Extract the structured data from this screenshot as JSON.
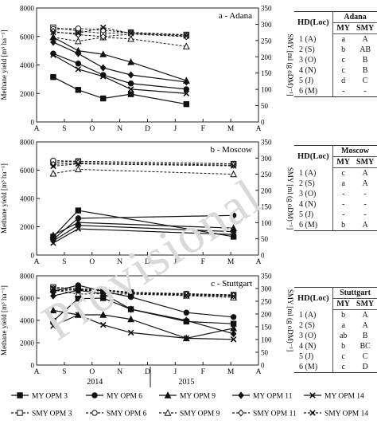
{
  "watermark": "Provisional",
  "axes": {
    "ylabel_left": "Methane yield [m³ ha⁻¹]",
    "ylabel_right": "SMY [ml (g oDM)⁻¹]",
    "left_ticks": [
      0,
      2000,
      4000,
      6000,
      8000
    ],
    "right_ticks": [
      0,
      50,
      100,
      150,
      200,
      250,
      300,
      350
    ],
    "month_ticks": [
      "A",
      "S",
      "O",
      "N",
      "D",
      "J",
      "F",
      "M",
      "A"
    ],
    "year_labels": [
      "2014",
      "2015"
    ]
  },
  "legend": [
    {
      "label": "MY OPM 3",
      "marker": "square",
      "filled": true,
      "dashed": false
    },
    {
      "label": "MY OPM 6",
      "marker": "circle",
      "filled": true,
      "dashed": false
    },
    {
      "label": "MY OPM 9",
      "marker": "triangle",
      "filled": true,
      "dashed": false
    },
    {
      "label": "MY OPM 11",
      "marker": "diamond",
      "filled": true,
      "dashed": false
    },
    {
      "label": "MY OPM 14",
      "marker": "cross",
      "filled": true,
      "dashed": false
    },
    {
      "label": "SMY OPM 3",
      "marker": "square",
      "filled": false,
      "dashed": true
    },
    {
      "label": "SMY OPM 6",
      "marker": "circle",
      "filled": false,
      "dashed": true
    },
    {
      "label": "SMY OPM 9",
      "marker": "triangle",
      "filled": false,
      "dashed": true
    },
    {
      "label": "SMY OPM 11",
      "marker": "diamond",
      "filled": false,
      "dashed": true
    },
    {
      "label": "SMY OPM 14",
      "marker": "cross",
      "filled": false,
      "dashed": true
    }
  ],
  "chart_data": [
    {
      "type": "line",
      "title": "a - Adana",
      "x_unit": "month index (0 = A Aug 2014 … 8 = A Apr 2015)",
      "ylim_left": [
        0,
        8000
      ],
      "ylim_right": [
        0,
        350
      ],
      "my_series": [
        {
          "name": "MY OPM 3",
          "x": [
            0.6,
            1.5,
            2.4,
            3.4,
            5.4
          ],
          "y": [
            3150,
            2250,
            1650,
            1950,
            1250
          ]
        },
        {
          "name": "MY OPM 6",
          "x": [
            0.6,
            1.5,
            2.4,
            3.4,
            5.4
          ],
          "y": [
            4800,
            4100,
            3300,
            2700,
            2300
          ]
        },
        {
          "name": "MY OPM 9",
          "x": [
            0.6,
            1.5,
            2.4,
            3.4,
            5.4
          ],
          "y": [
            5950,
            5000,
            4750,
            4200,
            2900
          ]
        },
        {
          "name": "MY OPM 11",
          "x": [
            0.6,
            1.5,
            2.4,
            3.4,
            5.4
          ],
          "y": [
            5600,
            4800,
            3800,
            3300,
            2800
          ]
        },
        {
          "name": "MY OPM 14",
          "x": [
            0.6,
            1.5,
            2.4,
            3.4,
            5.4
          ],
          "y": [
            4700,
            3700,
            3200,
            2300,
            2000
          ]
        }
      ],
      "smy_series": [
        {
          "name": "SMY OPM 3",
          "x": [
            0.6,
            1.5,
            2.4,
            3.4,
            5.4
          ],
          "y": [
            290,
            280,
            272,
            275,
            268
          ]
        },
        {
          "name": "SMY OPM 6",
          "x": [
            0.6,
            1.5,
            2.4,
            3.4,
            5.4
          ],
          "y": [
            285,
            287,
            282,
            274,
            266
          ]
        },
        {
          "name": "SMY OPM 9",
          "x": [
            0.6,
            1.5,
            2.4,
            3.4,
            5.4
          ],
          "y": [
            260,
            248,
            260,
            255,
            232
          ]
        },
        {
          "name": "SMY OPM 11",
          "x": [
            0.6,
            1.5,
            2.4,
            3.4,
            5.4
          ],
          "y": [
            278,
            268,
            262,
            270,
            262
          ]
        },
        {
          "name": "SMY OPM 14",
          "x": [
            0.6,
            1.5,
            2.4,
            3.4,
            5.4
          ],
          "y": [
            275,
            272,
            290,
            272,
            264
          ]
        }
      ],
      "table": {
        "loc": "Adana",
        "rows": [
          {
            "hd": "1 (A)",
            "my": "a",
            "smy": "A"
          },
          {
            "hd": "2 (S)",
            "my": "b",
            "smy": "AB"
          },
          {
            "hd": "3 (O)",
            "my": "c",
            "smy": "B"
          },
          {
            "hd": "4 (N)",
            "my": "c",
            "smy": "B"
          },
          {
            "hd": "5 (J)",
            "my": "d",
            "smy": "C"
          },
          {
            "hd": "6 (M)",
            "my": "-",
            "smy": "-"
          }
        ]
      }
    },
    {
      "type": "line",
      "title": "b - Moscow",
      "x_unit": "month index (0 = A Aug 2014 … 8 = A Apr 2015)",
      "ylim_left": [
        0,
        8000
      ],
      "ylim_right": [
        0,
        350
      ],
      "my_series": [
        {
          "name": "MY OPM 3",
          "x": [
            0.6,
            1.5,
            7.1
          ],
          "y": [
            1300,
            3150,
            1300
          ]
        },
        {
          "name": "MY OPM 6",
          "x": [
            0.6,
            1.5,
            7.1
          ],
          "y": [
            1100,
            2600,
            2800
          ]
        },
        {
          "name": "MY OPM 9",
          "x": [
            0.6,
            1.5,
            7.1
          ],
          "y": [
            1400,
            2300,
            1900
          ]
        },
        {
          "name": "MY OPM 11",
          "x": [
            0.6,
            1.5,
            7.1
          ],
          "y": [
            1000,
            2100,
            1650
          ]
        },
        {
          "name": "MY OPM 14",
          "x": [
            0.6,
            1.5,
            7.1
          ],
          "y": [
            850,
            1850,
            1450
          ]
        }
      ],
      "smy_series": [
        {
          "name": "SMY OPM 3",
          "x": [
            0.6,
            1.5,
            7.1
          ],
          "y": [
            287,
            290,
            282
          ]
        },
        {
          "name": "SMY OPM 6",
          "x": [
            0.6,
            1.5,
            7.1
          ],
          "y": [
            292,
            290,
            282
          ]
        },
        {
          "name": "SMY OPM 9",
          "x": [
            0.6,
            1.5,
            7.1
          ],
          "y": [
            252,
            265,
            250
          ]
        },
        {
          "name": "SMY OPM 11",
          "x": [
            0.6,
            1.5,
            7.1
          ],
          "y": [
            280,
            285,
            278
          ]
        },
        {
          "name": "SMY OPM 14",
          "x": [
            0.6,
            1.5,
            7.1
          ],
          "y": [
            275,
            282,
            276
          ]
        }
      ],
      "table": {
        "loc": "Moscow",
        "rows": [
          {
            "hd": "1 (A)",
            "my": "c",
            "smy": "A"
          },
          {
            "hd": "2 (S)",
            "my": "a",
            "smy": "A"
          },
          {
            "hd": "3 (O)",
            "my": "-",
            "smy": "-"
          },
          {
            "hd": "4 (N)",
            "my": "-",
            "smy": "-"
          },
          {
            "hd": "5 (J)",
            "my": "-",
            "smy": "-"
          },
          {
            "hd": "6 (M)",
            "my": "b",
            "smy": "A"
          }
        ]
      }
    },
    {
      "type": "line",
      "title": "c - Stuttgart",
      "x_unit": "month index (0 = A Aug 2014 … 8 = A Apr 2015)",
      "ylim_left": [
        0,
        8000
      ],
      "ylim_right": [
        0,
        350
      ],
      "my_series": [
        {
          "name": "MY OPM 3",
          "x": [
            0.6,
            1.5,
            2.4,
            3.4,
            5.4,
            7.1
          ],
          "y": [
            3950,
            5950,
            6000,
            5000,
            3900,
            3700
          ]
        },
        {
          "name": "MY OPM 6",
          "x": [
            0.6,
            1.5,
            2.4,
            3.4,
            5.4,
            7.1
          ],
          "y": [
            6600,
            7150,
            6600,
            6100,
            4700,
            4300
          ]
        },
        {
          "name": "MY OPM 9",
          "x": [
            0.6,
            1.5,
            2.4,
            3.4,
            5.4,
            7.1
          ],
          "y": [
            4900,
            4500,
            4500,
            4100,
            2400,
            3300
          ]
        },
        {
          "name": "MY OPM 11",
          "x": [
            0.6,
            1.5,
            2.4,
            3.4,
            5.4,
            7.1
          ],
          "y": [
            6200,
            6700,
            6400,
            5000,
            4000,
            2800
          ]
        },
        {
          "name": "MY OPM 14",
          "x": [
            0.6,
            1.5,
            2.4,
            3.4,
            5.4,
            7.1
          ],
          "y": [
            3500,
            4500,
            3600,
            2900,
            2400,
            2300
          ]
        }
      ],
      "smy_series": [
        {
          "name": "SMY OPM 3",
          "x": [
            0.6,
            1.5,
            2.4,
            3.4,
            5.4,
            7.1
          ],
          "y": [
            305,
            300,
            295,
            285,
            278,
            275
          ]
        },
        {
          "name": "SMY OPM 6",
          "x": [
            0.6,
            1.5,
            2.4,
            3.4,
            5.4,
            7.1
          ],
          "y": [
            300,
            295,
            295,
            285,
            280,
            275
          ]
        },
        {
          "name": "SMY OPM 9",
          "x": [
            0.6,
            1.5,
            2.4,
            3.4,
            5.4,
            7.1
          ],
          "y": [
            295,
            278,
            280,
            278,
            272,
            265
          ]
        },
        {
          "name": "SMY OPM 11",
          "x": [
            0.6,
            1.5,
            2.4,
            3.4,
            5.4,
            7.1
          ],
          "y": [
            290,
            296,
            290,
            283,
            276,
            272
          ]
        },
        {
          "name": "SMY OPM 14",
          "x": [
            0.6,
            1.5,
            2.4,
            3.4,
            5.4,
            7.1
          ],
          "y": [
            300,
            292,
            292,
            280,
            274,
            270
          ]
        }
      ],
      "table": {
        "loc": "Stuttgart",
        "rows": [
          {
            "hd": "1 (A)",
            "my": "b",
            "smy": "A"
          },
          {
            "hd": "2 (S)",
            "my": "a",
            "smy": "A"
          },
          {
            "hd": "3 (O)",
            "my": "ab",
            "smy": "B"
          },
          {
            "hd": "4 (N)",
            "my": "b",
            "smy": "BC"
          },
          {
            "hd": "5 (J)",
            "my": "c",
            "smy": "C"
          },
          {
            "hd": "6 (M)",
            "my": "c",
            "smy": "D"
          }
        ]
      }
    }
  ]
}
